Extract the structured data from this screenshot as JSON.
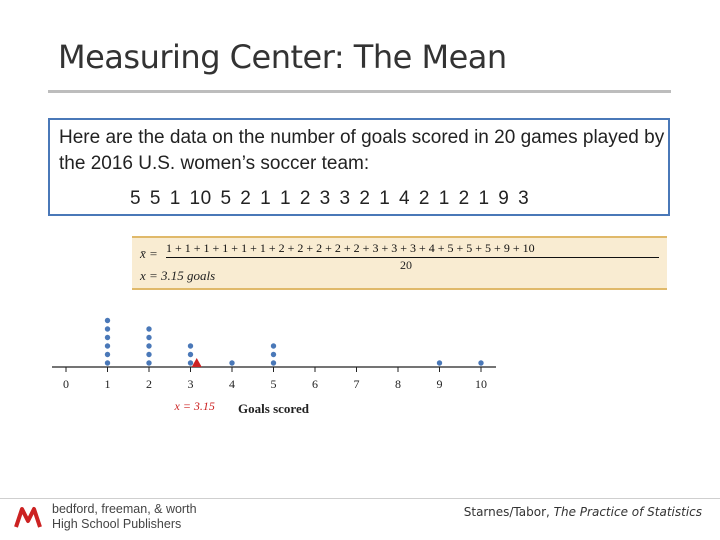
{
  "slide": {
    "title": "Measuring Center: The Mean"
  },
  "data_box": {
    "intro": "Here are the data on the number of goals scored in 20 games played by the 2016 U.S. women’s soccer team:",
    "values": "5 5 1 10 5 2 1 1 2 3 3 2 1 4 2 1 2 1 9 3"
  },
  "formula": {
    "xbar_label": "x̄ =",
    "numerator": "1 + 1 + 1 + 1 + 1 + 1 + 2 + 2 + 2 + 2 + 2 + 3 + 3 + 3 + 4 + 5 + 5 + 5 + 9 + 10",
    "denominator": "20",
    "result": "x = 3.15 goals"
  },
  "chart_data": {
    "type": "scatter",
    "subtype": "dotplot",
    "xlabel": "Goals scored",
    "x_ticks": [
      0,
      1,
      2,
      3,
      4,
      5,
      6,
      7,
      8,
      9,
      10
    ],
    "xlim": [
      0,
      10
    ],
    "counts": {
      "1": 6,
      "2": 5,
      "3": 3,
      "4": 1,
      "5": 3,
      "9": 1,
      "10": 1
    },
    "mean_marker": {
      "value": 3.15,
      "label": "x = 3.15"
    },
    "dot_color": "#4a78b8",
    "marker_color": "#cc2222"
  },
  "footer": {
    "publisher_line1": "bedford, freeman, & worth",
    "publisher_line2": "High School Publishers",
    "source_authors": "Starnes/Tabor,",
    "source_title": "The Practice of Statistics"
  }
}
